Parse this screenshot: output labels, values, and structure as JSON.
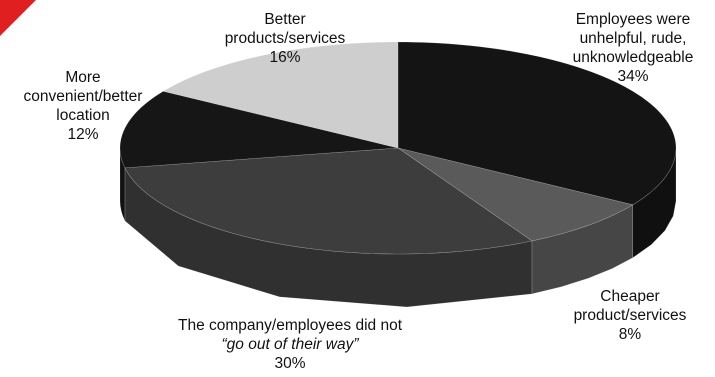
{
  "chart_data": {
    "type": "pie",
    "style": "3d",
    "title": "",
    "slices": [
      {
        "label_lines": [
          "Employees were",
          "unhelpful, rude,",
          "unknowledgeable"
        ],
        "pct_label": "34%",
        "value": 34,
        "color": "#141414"
      },
      {
        "label_lines": [
          "Cheaper",
          "product/services"
        ],
        "pct_label": "8%",
        "value": 8,
        "color": "#5a5a5a"
      },
      {
        "label_lines": [
          "The company/employees did not",
          "“go out of their way”"
        ],
        "pct_label": "30%",
        "value": 30,
        "color": "#3d3d3d"
      },
      {
        "label_lines": [
          "More",
          "convenient/better",
          "location"
        ],
        "pct_label": "12%",
        "value": 12,
        "color": "#161616"
      },
      {
        "label_lines": [
          "Better",
          "products/services"
        ],
        "pct_label": "16%",
        "value": 16,
        "color": "#cecece"
      }
    ]
  },
  "decor": {
    "corner_color": "#e02020",
    "icon": "red-corner-triangle-icon"
  }
}
